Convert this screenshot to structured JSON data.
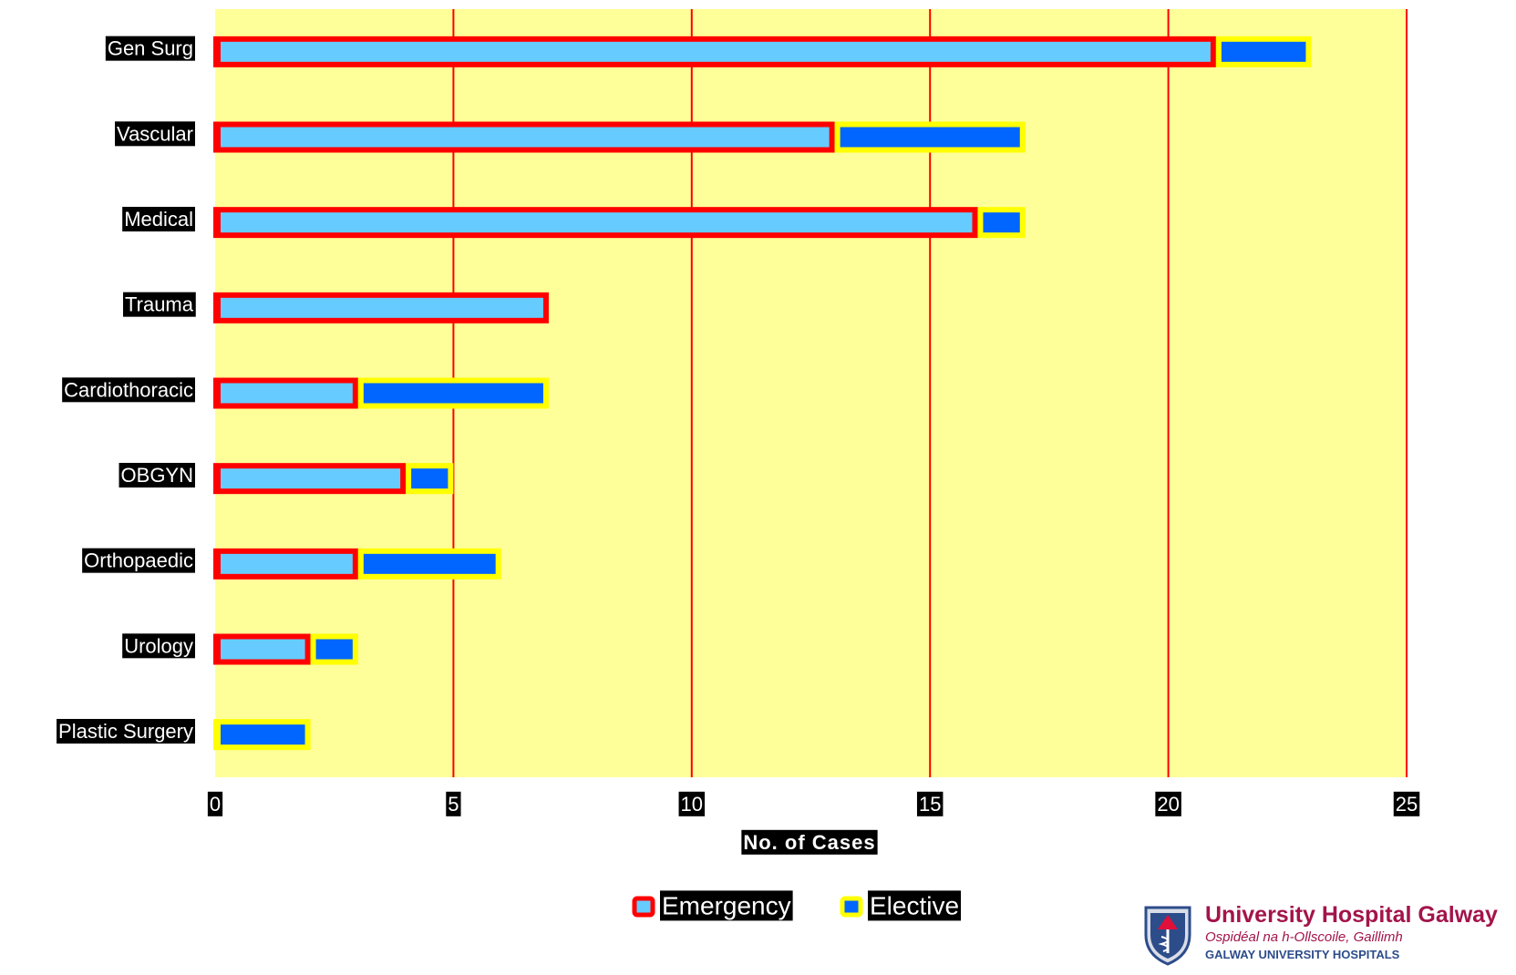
{
  "chart_data": {
    "type": "bar",
    "orientation": "horizontal",
    "stacked": true,
    "categories": [
      "Gen Surg",
      "Vascular",
      "Medical",
      "Trauma",
      "Cardiothoracic",
      "OBGYN",
      "Orthopaedic",
      "Urology",
      "Plastic Surgery"
    ],
    "series": [
      {
        "name": "Emergency",
        "values": [
          21,
          13,
          16,
          7,
          3,
          4,
          3,
          2,
          0
        ],
        "fill": "#66ccff",
        "border": "#ff0000"
      },
      {
        "name": "Elective",
        "values": [
          2,
          4,
          1,
          0,
          4,
          1,
          3,
          1,
          2
        ],
        "fill": "#0066ff",
        "border": "#ffff00"
      }
    ],
    "xlabel": "No. of Cases",
    "xlim": [
      0,
      25
    ],
    "xticks": [
      0,
      5,
      10,
      15,
      20,
      25
    ],
    "grid": true,
    "grid_color": "#ff0000",
    "plot_background": "#ffff99",
    "legend_position": "bottom"
  },
  "logo": {
    "title": "University Hospital Galway",
    "subtitle": "Ospidéal na h-Ollscoile, Gaillimh",
    "subtitle2": "GALWAY UNIVERSITY HOSPITALS",
    "shield-icon": "shield-icon"
  }
}
